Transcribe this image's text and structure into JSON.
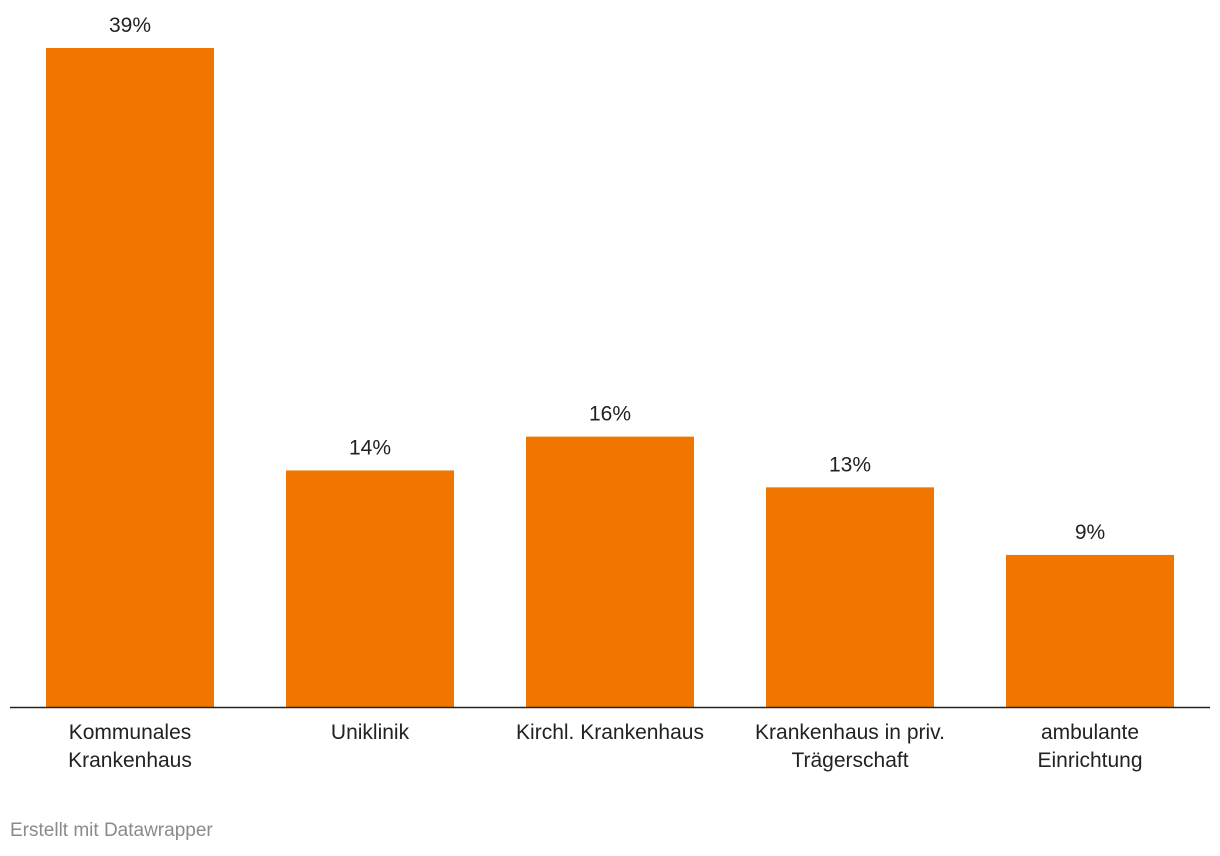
{
  "chart_data": {
    "type": "bar",
    "categories": [
      [
        "Kommunales",
        "Krankenhaus"
      ],
      [
        "Uniklinik"
      ],
      [
        "Kirchl. Krankenhaus"
      ],
      [
        "Krankenhaus in priv.",
        "Trägerschaft"
      ],
      [
        "ambulante",
        "Einrichtung"
      ]
    ],
    "values": [
      39,
      14,
      16,
      13,
      9
    ],
    "value_labels": [
      "39%",
      "14%",
      "16%",
      "13%",
      "9%"
    ],
    "unit": "%",
    "ylim": [
      0,
      39
    ],
    "grid": false,
    "bar_color": "#f07600",
    "axis_color": "#222222"
  },
  "footer": {
    "credit": "Erstellt mit Datawrapper"
  }
}
